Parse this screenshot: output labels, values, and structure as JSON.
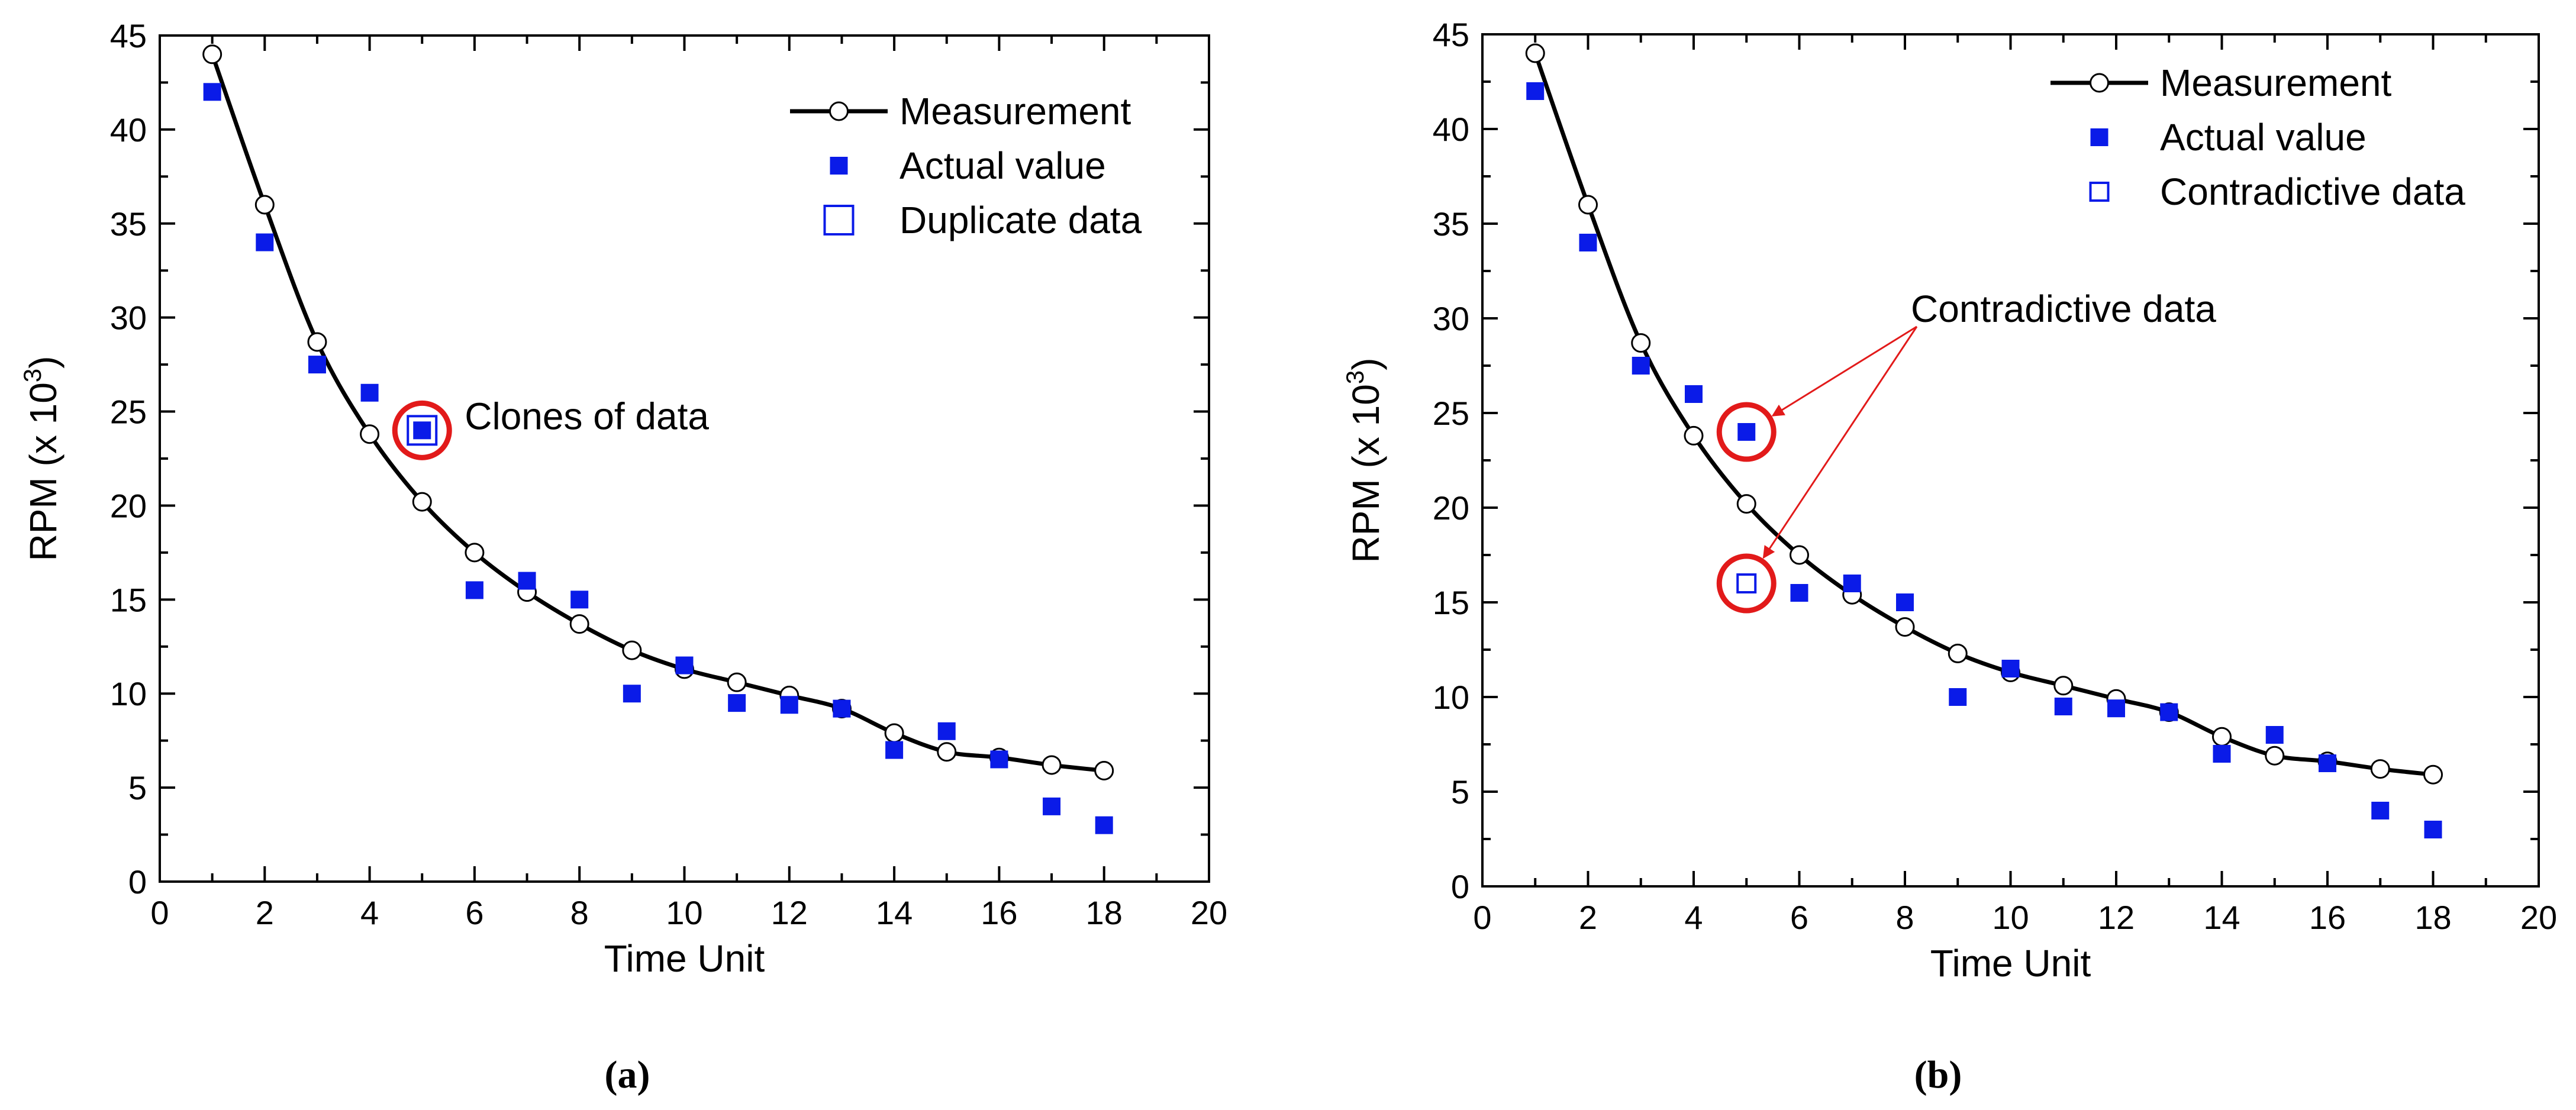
{
  "colors": {
    "measurement": "#000000",
    "actual": "#0a1be8",
    "highlight": "#e21a1a"
  },
  "chart_data": [
    {
      "type": "line+scatter",
      "caption": "(a)",
      "xlabel": "Time Unit",
      "ylabel": "RPM (x 10",
      "ylabel_sup": "3",
      "ylabel_close": ")",
      "xlim": [
        0,
        20
      ],
      "ylim": [
        0,
        45
      ],
      "xticks": [
        0,
        2,
        4,
        6,
        8,
        10,
        12,
        14,
        16,
        18,
        20
      ],
      "yticks": [
        0,
        5,
        10,
        15,
        20,
        25,
        30,
        35,
        40,
        45
      ],
      "grid": false,
      "legend_position": "top-right",
      "series": [
        {
          "name": "Measurement",
          "kind": "line-circle",
          "x": [
            1,
            2,
            3,
            4,
            5,
            6,
            7,
            8,
            9,
            10,
            11,
            12,
            13,
            14,
            15,
            16,
            17,
            18
          ],
          "y": [
            44,
            36,
            28.7,
            23.8,
            20.2,
            17.5,
            15.4,
            13.7,
            12.3,
            11.3,
            10.6,
            9.9,
            9.2,
            7.9,
            6.9,
            6.6,
            6.2,
            5.9
          ]
        },
        {
          "name": "Actual value",
          "kind": "filled-square",
          "x": [
            1,
            2,
            3,
            4,
            5,
            6,
            7,
            8,
            9,
            10,
            11,
            12,
            13,
            14,
            15,
            16,
            17,
            18
          ],
          "y": [
            42,
            34,
            27.5,
            26,
            24,
            15.5,
            16,
            15,
            10,
            11.5,
            9.5,
            9.4,
            9.2,
            7,
            8,
            6.5,
            4,
            3
          ]
        },
        {
          "name": "Duplicate data",
          "kind": "open-square",
          "x": [
            5
          ],
          "y": [
            24
          ]
        }
      ],
      "annotations": [
        {
          "text": "Clones of data",
          "x": 5,
          "y": 24
        }
      ]
    },
    {
      "type": "line+scatter",
      "caption": "(b)",
      "xlabel": "Time Unit",
      "ylabel": "RPM (x 10",
      "ylabel_sup": "3",
      "ylabel_close": ")",
      "xlim": [
        0,
        20
      ],
      "ylim": [
        0,
        45
      ],
      "xticks": [
        0,
        2,
        4,
        6,
        8,
        10,
        12,
        14,
        16,
        18,
        20
      ],
      "yticks": [
        0,
        5,
        10,
        15,
        20,
        25,
        30,
        35,
        40,
        45
      ],
      "grid": false,
      "legend_position": "top-right",
      "series": [
        {
          "name": "Measurement",
          "kind": "line-circle",
          "x": [
            1,
            2,
            3,
            4,
            5,
            6,
            7,
            8,
            9,
            10,
            11,
            12,
            13,
            14,
            15,
            16,
            17,
            18
          ],
          "y": [
            44,
            36,
            28.7,
            23.8,
            20.2,
            17.5,
            15.4,
            13.7,
            12.3,
            11.3,
            10.6,
            9.9,
            9.2,
            7.9,
            6.9,
            6.6,
            6.2,
            5.9
          ]
        },
        {
          "name": "Actual value",
          "kind": "filled-square",
          "x": [
            1,
            2,
            3,
            4,
            5,
            6,
            7,
            8,
            9,
            10,
            11,
            12,
            13,
            14,
            15,
            16,
            17,
            18
          ],
          "y": [
            42,
            34,
            27.5,
            26,
            24,
            15.5,
            16,
            15,
            10,
            11.5,
            9.5,
            9.4,
            9.2,
            7,
            8,
            6.5,
            4,
            3
          ]
        },
        {
          "name": "Contradictive data",
          "kind": "open-square",
          "x": [
            5
          ],
          "y": [
            16
          ]
        }
      ],
      "annotations": [
        {
          "text": "Contradictive data",
          "x": 8,
          "y": 30,
          "targets": [
            [
              5,
              24
            ],
            [
              5,
              16
            ]
          ]
        }
      ]
    }
  ]
}
